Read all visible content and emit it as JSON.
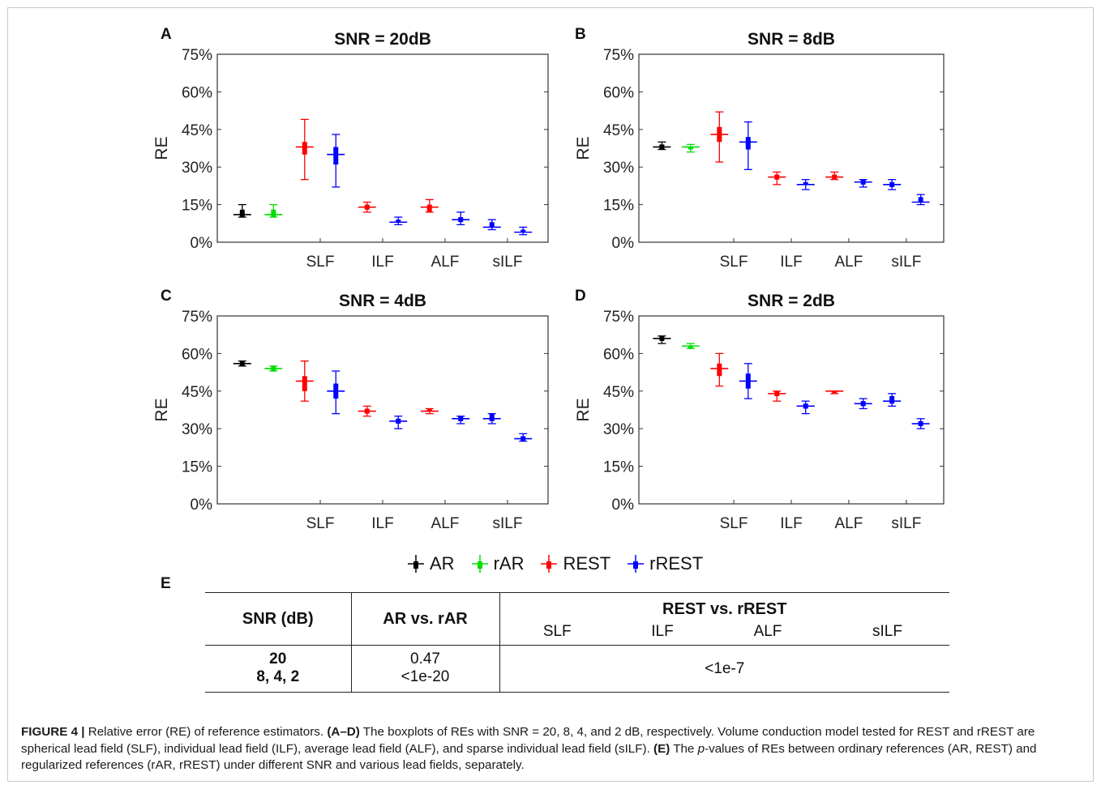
{
  "chart_data": [
    {
      "type": "boxplot",
      "panel": "A",
      "title": "SNR = 20dB",
      "ylabel": "RE",
      "ylim": [
        0,
        75
      ],
      "yticks": [
        "0%",
        "15%",
        "30%",
        "45%",
        "60%",
        "75%"
      ],
      "categories": [
        "SLF",
        "ILF",
        "ALF",
        "sILF"
      ],
      "series": [
        {
          "name": "AR",
          "color": "#000000",
          "boxes": [
            {
              "pos": 1,
              "median": 11,
              "q1": 10,
              "q3": 13,
              "lo": 10,
              "hi": 15
            }
          ]
        },
        {
          "name": "rAR",
          "color": "#00dd00",
          "boxes": [
            {
              "pos": 2,
              "median": 11,
              "q1": 10,
              "q3": 13,
              "lo": 10,
              "hi": 15
            }
          ]
        },
        {
          "name": "REST",
          "color": "#ff0000",
          "boxes": [
            {
              "pos": 3,
              "median": 38,
              "q1": 35,
              "q3": 40,
              "lo": 25,
              "hi": 49
            },
            {
              "pos": 5,
              "median": 14,
              "q1": 13,
              "q3": 15,
              "lo": 12,
              "hi": 16
            },
            {
              "pos": 7,
              "median": 14,
              "q1": 12,
              "q3": 15,
              "lo": 12,
              "hi": 17
            }
          ]
        },
        {
          "name": "rREST",
          "color": "#0000ff",
          "boxes": [
            {
              "pos": 4,
              "median": 35,
              "q1": 31,
              "q3": 38,
              "lo": 22,
              "hi": 43
            },
            {
              "pos": 6,
              "median": 8,
              "q1": 8,
              "q3": 9,
              "lo": 7,
              "hi": 10
            },
            {
              "pos": 8,
              "median": 9,
              "q1": 8,
              "q3": 10,
              "lo": 7,
              "hi": 12
            },
            {
              "pos": 9,
              "median": 6,
              "q1": 6,
              "q3": 8,
              "lo": 5,
              "hi": 9
            },
            {
              "pos": 10,
              "median": 4,
              "q1": 4,
              "q3": 5,
              "lo": 3,
              "hi": 6
            }
          ]
        }
      ]
    },
    {
      "type": "boxplot",
      "panel": "B",
      "title": "SNR = 8dB",
      "ylabel": "RE",
      "ylim": [
        0,
        75
      ],
      "yticks": [
        "0%",
        "15%",
        "30%",
        "45%",
        "60%",
        "75%"
      ],
      "categories": [
        "SLF",
        "ILF",
        "ALF",
        "sILF"
      ],
      "series": [
        {
          "name": "AR",
          "color": "#000000",
          "boxes": [
            {
              "pos": 1,
              "median": 38,
              "q1": 37,
              "q3": 39,
              "lo": 37,
              "hi": 40
            }
          ]
        },
        {
          "name": "rAR",
          "color": "#00dd00",
          "boxes": [
            {
              "pos": 2,
              "median": 38,
              "q1": 37,
              "q3": 38,
              "lo": 36,
              "hi": 39
            }
          ]
        },
        {
          "name": "REST",
          "color": "#ff0000",
          "boxes": [
            {
              "pos": 3,
              "median": 43,
              "q1": 40,
              "q3": 46,
              "lo": 32,
              "hi": 52
            },
            {
              "pos": 5,
              "median": 26,
              "q1": 25,
              "q3": 27,
              "lo": 23,
              "hi": 28
            },
            {
              "pos": 7,
              "median": 26,
              "q1": 25,
              "q3": 27,
              "lo": 25,
              "hi": 28
            }
          ]
        },
        {
          "name": "rREST",
          "color": "#0000ff",
          "boxes": [
            {
              "pos": 4,
              "median": 40,
              "q1": 37,
              "q3": 42,
              "lo": 29,
              "hi": 48
            },
            {
              "pos": 6,
              "median": 23,
              "q1": 23,
              "q3": 24,
              "lo": 21,
              "hi": 25
            },
            {
              "pos": 8,
              "median": 24,
              "q1": 23,
              "q3": 25,
              "lo": 22,
              "hi": 25
            },
            {
              "pos": 9,
              "median": 23,
              "q1": 22,
              "q3": 24,
              "lo": 21,
              "hi": 25
            },
            {
              "pos": 10,
              "median": 16,
              "q1": 16,
              "q3": 18,
              "lo": 15,
              "hi": 19
            }
          ]
        }
      ]
    },
    {
      "type": "boxplot",
      "panel": "C",
      "title": "SNR = 4dB",
      "ylabel": "RE",
      "ylim": [
        0,
        75
      ],
      "yticks": [
        "0%",
        "15%",
        "30%",
        "45%",
        "60%",
        "75%"
      ],
      "categories": [
        "SLF",
        "ILF",
        "ALF",
        "sILF"
      ],
      "series": [
        {
          "name": "AR",
          "color": "#000000",
          "boxes": [
            {
              "pos": 1,
              "median": 56,
              "q1": 55,
              "q3": 57,
              "lo": 55,
              "hi": 57
            }
          ]
        },
        {
          "name": "rAR",
          "color": "#00dd00",
          "boxes": [
            {
              "pos": 2,
              "median": 54,
              "q1": 53,
              "q3": 55,
              "lo": 53,
              "hi": 55
            }
          ]
        },
        {
          "name": "REST",
          "color": "#ff0000",
          "boxes": [
            {
              "pos": 3,
              "median": 49,
              "q1": 45,
              "q3": 51,
              "lo": 41,
              "hi": 57
            },
            {
              "pos": 5,
              "median": 37,
              "q1": 36,
              "q3": 38,
              "lo": 35,
              "hi": 39
            },
            {
              "pos": 7,
              "median": 37,
              "q1": 37,
              "q3": 38,
              "lo": 36,
              "hi": 38
            }
          ]
        },
        {
          "name": "rREST",
          "color": "#0000ff",
          "boxes": [
            {
              "pos": 4,
              "median": 45,
              "q1": 42,
              "q3": 48,
              "lo": 36,
              "hi": 53
            },
            {
              "pos": 6,
              "median": 33,
              "q1": 32,
              "q3": 34,
              "lo": 30,
              "hi": 35
            },
            {
              "pos": 8,
              "median": 34,
              "q1": 33,
              "q3": 35,
              "lo": 32,
              "hi": 35
            },
            {
              "pos": 9,
              "median": 34,
              "q1": 33,
              "q3": 36,
              "lo": 32,
              "hi": 36
            },
            {
              "pos": 10,
              "median": 26,
              "q1": 25,
              "q3": 27,
              "lo": 25,
              "hi": 28
            }
          ]
        }
      ]
    },
    {
      "type": "boxplot",
      "panel": "D",
      "title": "SNR = 2dB",
      "ylabel": "RE",
      "ylim": [
        0,
        75
      ],
      "yticks": [
        "0%",
        "15%",
        "30%",
        "45%",
        "60%",
        "75%"
      ],
      "categories": [
        "SLF",
        "ILF",
        "ALF",
        "sILF"
      ],
      "series": [
        {
          "name": "AR",
          "color": "#000000",
          "boxes": [
            {
              "pos": 1,
              "median": 66,
              "q1": 65,
              "q3": 67,
              "lo": 64,
              "hi": 67
            }
          ]
        },
        {
          "name": "rAR",
          "color": "#00dd00",
          "boxes": [
            {
              "pos": 2,
              "median": 63,
              "q1": 62,
              "q3": 63,
              "lo": 62,
              "hi": 64
            }
          ]
        },
        {
          "name": "REST",
          "color": "#ff0000",
          "boxes": [
            {
              "pos": 3,
              "median": 54,
              "q1": 51,
              "q3": 56,
              "lo": 47,
              "hi": 60
            },
            {
              "pos": 5,
              "median": 44,
              "q1": 43,
              "q3": 45,
              "lo": 41,
              "hi": 45
            },
            {
              "pos": 7,
              "median": 45,
              "q1": 44,
              "q3": 45,
              "lo": 44,
              "hi": 45
            }
          ]
        },
        {
          "name": "rREST",
          "color": "#0000ff",
          "boxes": [
            {
              "pos": 4,
              "median": 49,
              "q1": 46,
              "q3": 52,
              "lo": 42,
              "hi": 56
            },
            {
              "pos": 6,
              "median": 39,
              "q1": 38,
              "q3": 40,
              "lo": 36,
              "hi": 41
            },
            {
              "pos": 8,
              "median": 40,
              "q1": 39,
              "q3": 41,
              "lo": 38,
              "hi": 42
            },
            {
              "pos": 9,
              "median": 41,
              "q1": 40,
              "q3": 43,
              "lo": 39,
              "hi": 44
            },
            {
              "pos": 10,
              "median": 32,
              "q1": 31,
              "q3": 33,
              "lo": 30,
              "hi": 34
            }
          ]
        }
      ]
    }
  ],
  "legend": [
    {
      "name": "AR",
      "color": "#000000"
    },
    {
      "name": "rAR",
      "color": "#00dd00"
    },
    {
      "name": "REST",
      "color": "#ff0000"
    },
    {
      "name": "rREST",
      "color": "#0000ff"
    }
  ],
  "table": {
    "panel": "E",
    "col_snr": "SNR (dB)",
    "col_ar": "AR vs. rAR",
    "col_rest": "REST vs. rREST",
    "sub_cols": [
      "SLF",
      "ILF",
      "ALF",
      "sILF"
    ],
    "row1_snr": "20",
    "row2_snr": "8, 4, 2",
    "row1_ar": "0.47",
    "row2_ar": "<1e-20",
    "rest_value": "<1e-7"
  },
  "caption": {
    "label": "FIGURE 4 |",
    "intro": " Relative error (RE) of reference estimators. ",
    "ad_ref": "(A–D)",
    "ad_text": " The boxplots of REs with SNR = 20, 8, 4, and 2 dB, respectively. Volume conduction model tested for REST and rREST are spherical lead field (SLF), individual lead field (ILF), average lead field (ALF), and sparse individual lead field (sILF). ",
    "e_ref": "(E)",
    "e_text_1": " The ",
    "p_italic": "p",
    "e_text_2": "-values of REs between ordinary references (AR, REST) and regularized references (rAR, rREST) under different SNR and various lead fields, separately."
  }
}
